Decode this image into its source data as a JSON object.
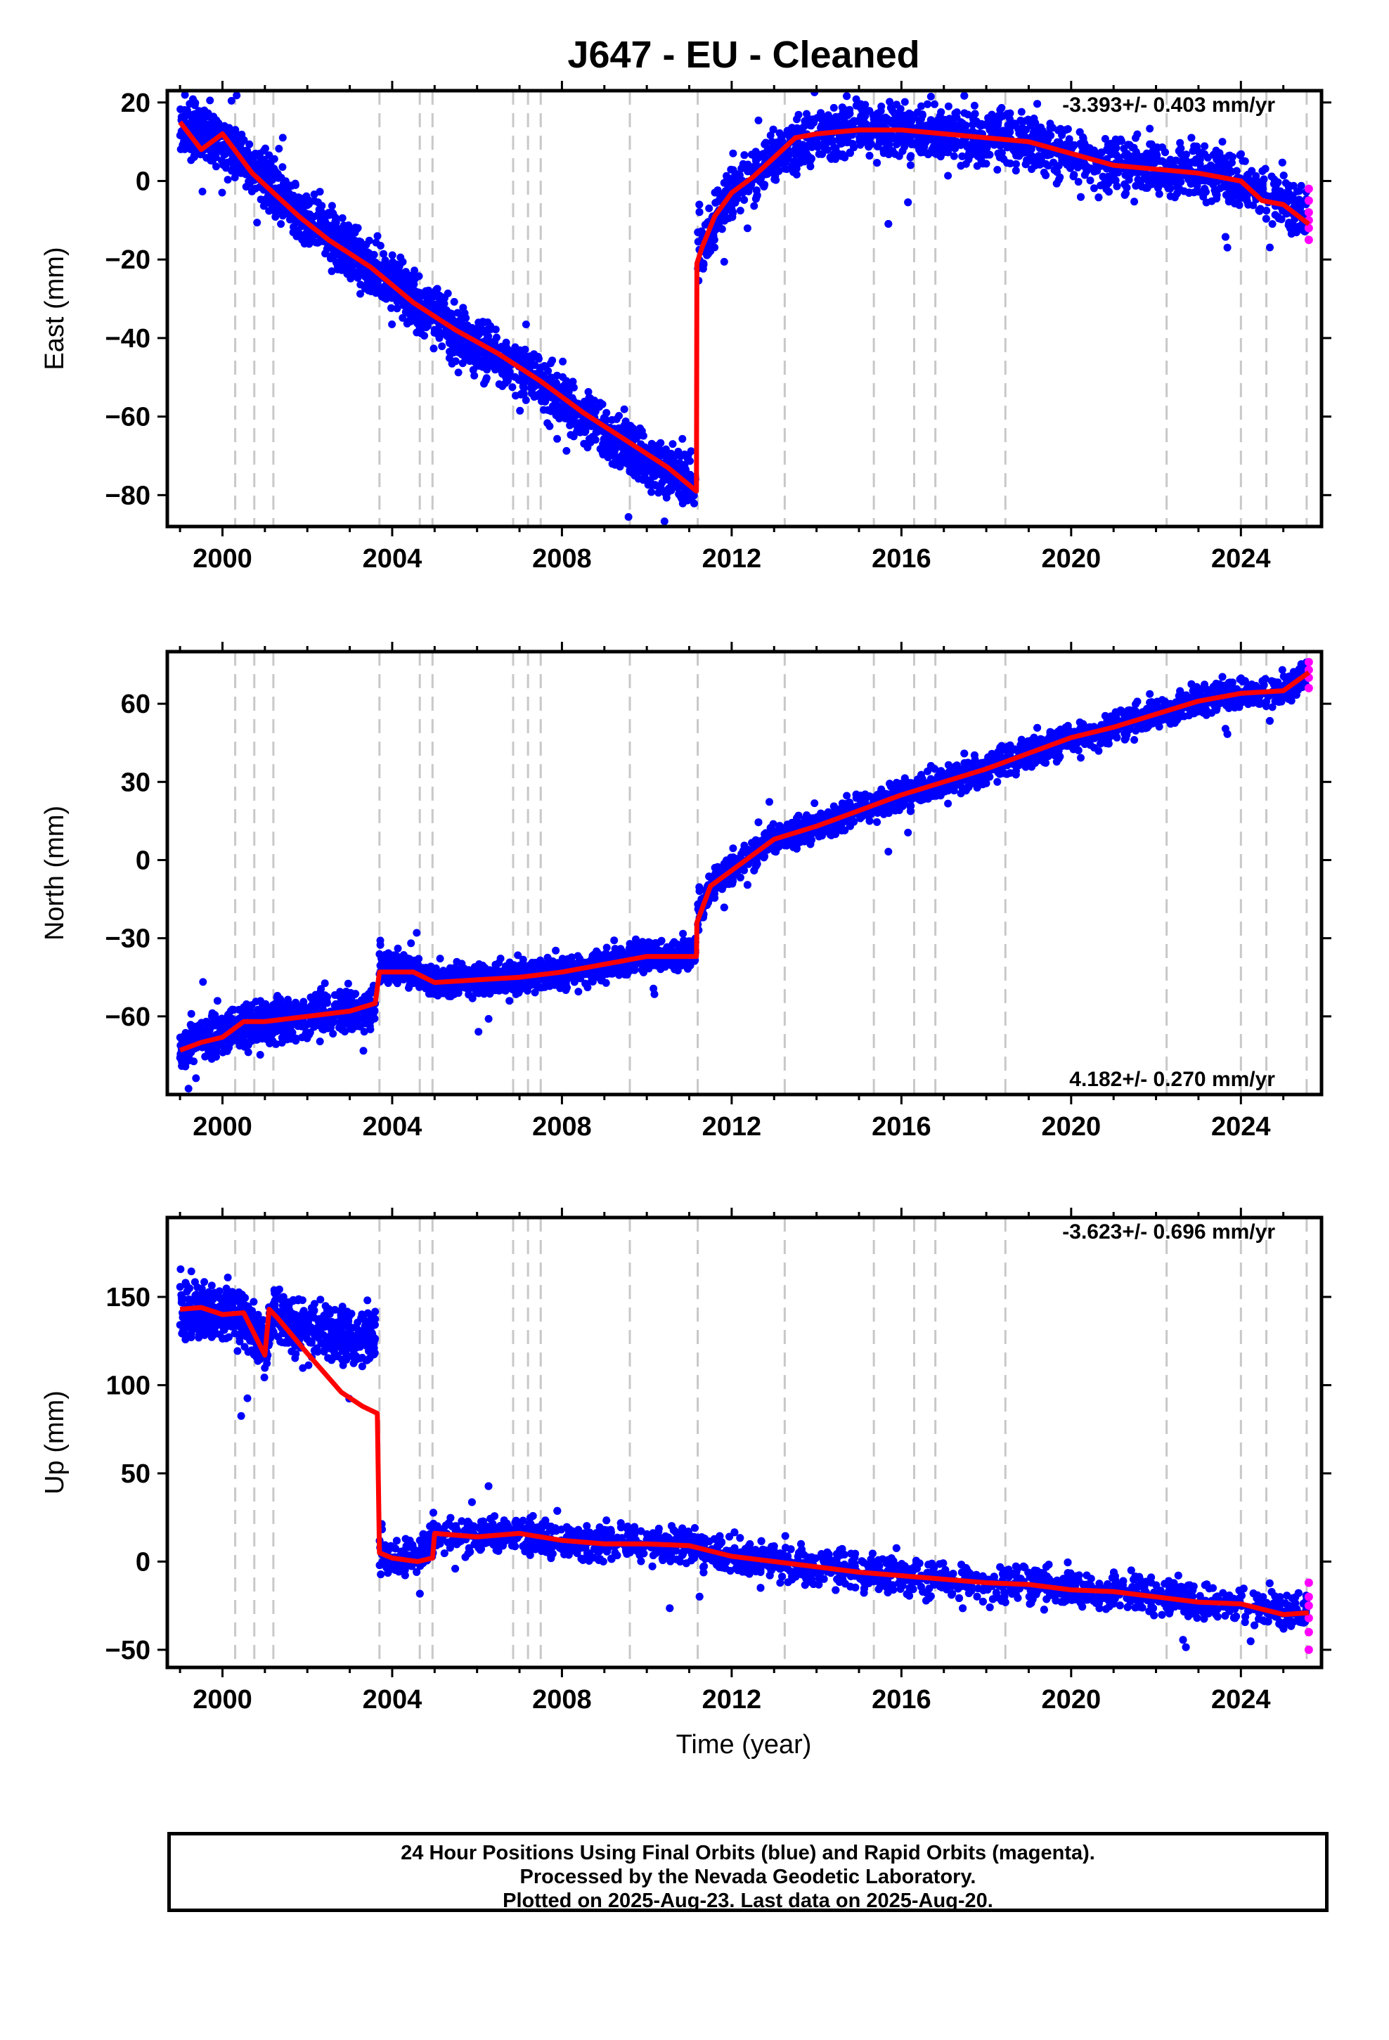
{
  "title": "J647  - EU - Cleaned",
  "xlabel": "Time (year)",
  "colors": {
    "final": "#0000ff",
    "rapid": "#ff00ff",
    "model": "#ff0000",
    "event": "#c8c8c8"
  },
  "caption": {
    "line1": "24 Hour Positions Using Final Orbits (blue) and Rapid Orbits (magenta).",
    "line2": "Processed by the Nevada Geodetic Laboratory.",
    "line3": "Plotted on 2025-Aug-23. Last data on 2025-Aug-20."
  },
  "chart_data": [
    {
      "type": "scatter",
      "component": "east",
      "ylabel": "East (mm)",
      "rate": "-3.393+/- 0.403 mm/yr",
      "rate_position": "top-right",
      "xlim": [
        1998.7,
        2025.9
      ],
      "ylim": [
        -88,
        23
      ],
      "xticks": [
        "2000",
        "2004",
        "2008",
        "2012",
        "2016",
        "2020",
        "2024"
      ],
      "yticks": [
        "20",
        "0",
        "−20",
        "−40",
        "−60",
        "−80"
      ],
      "ytick_values": [
        20,
        0,
        -20,
        -40,
        -60,
        -80
      ],
      "event_lines": [
        2000.3,
        2000.75,
        2001.2,
        2003.7,
        2004.65,
        2004.95,
        2006.85,
        2007.2,
        2007.5,
        2009.6,
        2011.2,
        2013.25,
        2015.35,
        2016.3,
        2016.8,
        2018.45,
        2022.25,
        2024.0,
        2024.6,
        2025.55
      ],
      "model": {
        "x": [
          1999.0,
          1999.5,
          2000.0,
          2000.7,
          2001.0,
          2001.8,
          2002.5,
          2003.5,
          2004.5,
          2005.5,
          2006.5,
          2007.5,
          2008.5,
          2009.5,
          2010.5,
          2011.17,
          2011.18,
          2011.3,
          2011.6,
          2012.0,
          2012.5,
          2013.0,
          2013.5,
          2014.0,
          2015.0,
          2016.0,
          2017.0,
          2018.0,
          2019.0,
          2020.0,
          2021.0,
          2022.0,
          2023.0,
          2024.0,
          2024.5,
          2025.0,
          2025.6
        ],
        "y": [
          15,
          8,
          12,
          2,
          -1,
          -9,
          -15,
          -22,
          -31,
          -38,
          -44,
          -51,
          -59,
          -66,
          -73,
          -79,
          -21,
          -17,
          -9,
          -3,
          1,
          6,
          11,
          12,
          13,
          13,
          12,
          11,
          10,
          7,
          4,
          3,
          2,
          0,
          -5,
          -6,
          -11
        ]
      },
      "bands": [
        {
          "x": [
            1999.0,
            2000.0,
            2001.0,
            2002.0,
            2003.0,
            2004.0,
            2005.0,
            2006.0,
            2007.0,
            2008.0,
            2009.0,
            2010.0,
            2011.15
          ],
          "center": [
            15,
            9,
            1,
            -10,
            -18,
            -26,
            -35,
            -42,
            -48,
            -56,
            -64,
            -71,
            -77
          ],
          "spread": 6
        },
        {
          "x": [
            2011.2,
            2011.6,
            2012.0,
            2012.5,
            2013.0,
            2014.0,
            2015.0,
            2016.0,
            2017.0,
            2018.0,
            2019.0,
            2020.0,
            2021.0,
            2022.0,
            2023.0,
            2024.0,
            2025.0,
            2025.55
          ],
          "center": [
            -19,
            -10,
            -3,
            1,
            6,
            12,
            13,
            13,
            12,
            11,
            10,
            7,
            4,
            3,
            2,
            0,
            -5,
            -10
          ],
          "spread": 6
        }
      ],
      "rapid": {
        "x": 2025.6,
        "y": [
          -15,
          -12,
          -10,
          -8,
          -5,
          -2
        ]
      }
    },
    {
      "type": "scatter",
      "component": "north",
      "ylabel": "North (mm)",
      "rate": "4.182+/- 0.270 mm/yr",
      "rate_position": "bottom-right",
      "xlim": [
        1998.7,
        2025.9
      ],
      "ylim": [
        -90,
        80
      ],
      "xticks": [
        "2000",
        "2004",
        "2008",
        "2012",
        "2016",
        "2020",
        "2024"
      ],
      "yticks": [
        "60",
        "30",
        "0",
        "−30",
        "−60"
      ],
      "ytick_values": [
        60,
        30,
        0,
        -30,
        -60
      ],
      "event_lines": [
        2000.3,
        2000.75,
        2001.2,
        2003.7,
        2004.65,
        2004.95,
        2006.85,
        2007.2,
        2007.5,
        2009.6,
        2011.2,
        2013.25,
        2015.35,
        2016.3,
        2016.8,
        2018.45,
        2022.25,
        2024.0,
        2024.6,
        2025.55
      ],
      "model": {
        "x": [
          1999.0,
          1999.5,
          2000.0,
          2000.5,
          2001.0,
          2002.0,
          2003.0,
          2003.6,
          2003.7,
          2004.5,
          2005.0,
          2006.0,
          2007.0,
          2008.0,
          2009.0,
          2010.0,
          2011.17,
          2011.18,
          2011.5,
          2012.0,
          2012.5,
          2013.0,
          2014.0,
          2015.0,
          2016.0,
          2017.0,
          2018.0,
          2019.0,
          2020.0,
          2021.0,
          2022.0,
          2023.0,
          2024.0,
          2025.0,
          2025.6
        ],
        "y": [
          -73,
          -70,
          -68,
          -62,
          -62,
          -60,
          -58,
          -55,
          -43,
          -43,
          -47,
          -46,
          -45,
          -43,
          -40,
          -37,
          -37,
          -24,
          -10,
          -4,
          2,
          8,
          13,
          19,
          25,
          30,
          35,
          41,
          47,
          51,
          56,
          61,
          64,
          65,
          72
        ]
      },
      "bands": [
        {
          "x": [
            1999.0,
            2000.0,
            2001.0,
            2002.0,
            2003.0,
            2003.6
          ],
          "center": [
            -72,
            -66,
            -62,
            -60,
            -58,
            -57
          ],
          "spread": 7
        },
        {
          "x": [
            2003.7,
            2004.5,
            2005.0,
            2006.0,
            2007.0,
            2008.0,
            2009.0,
            2010.0,
            2011.15
          ],
          "center": [
            -41,
            -43,
            -47,
            -46,
            -45,
            -43,
            -40,
            -37,
            -36
          ],
          "spread": 5
        },
        {
          "x": [
            2011.2,
            2011.5,
            2012.0,
            2012.5,
            2013.0,
            2014.0,
            2015.0,
            2016.0,
            2017.0,
            2018.0,
            2019.0,
            2020.0,
            2021.0,
            2022.0,
            2023.0,
            2024.0,
            2025.0,
            2025.55
          ],
          "center": [
            -22,
            -10,
            -4,
            2,
            8,
            13,
            19,
            25,
            30,
            35,
            41,
            47,
            51,
            56,
            61,
            64,
            65,
            70
          ],
          "spread": 5
        }
      ],
      "rapid": {
        "x": 2025.6,
        "y": [
          66,
          70,
          73,
          76
        ]
      }
    },
    {
      "type": "scatter",
      "component": "up",
      "ylabel": "Up (mm)",
      "rate": "-3.623+/- 0.696 mm/yr",
      "rate_position": "top-right",
      "xlim": [
        1998.7,
        2025.9
      ],
      "ylim": [
        -60,
        195
      ],
      "xticks": [
        "2000",
        "2004",
        "2008",
        "2012",
        "2016",
        "2020",
        "2024"
      ],
      "yticks": [
        "150",
        "100",
        "50",
        "0",
        "−50"
      ],
      "ytick_values": [
        150,
        100,
        50,
        0,
        -50
      ],
      "event_lines": [
        2000.3,
        2000.75,
        2001.2,
        2003.7,
        2004.65,
        2004.95,
        2006.85,
        2007.2,
        2007.5,
        2009.6,
        2011.2,
        2013.25,
        2015.35,
        2016.3,
        2016.8,
        2018.45,
        2022.25,
        2024.0,
        2024.6,
        2025.55
      ],
      "model": {
        "x": [
          1999.0,
          1999.5,
          2000.0,
          2000.5,
          2001.0,
          2001.1,
          2001.3,
          2002.0,
          2002.8,
          2003.3,
          2003.65,
          2003.7,
          2004.0,
          2004.6,
          2004.95,
          2005.0,
          2006.0,
          2007.0,
          2008.0,
          2009.0,
          2010.0,
          2011.0,
          2012.0,
          2013.0,
          2014.0,
          2015.0,
          2016.0,
          2017.0,
          2018.0,
          2019.0,
          2020.0,
          2021.0,
          2022.0,
          2023.0,
          2024.0,
          2025.0,
          2025.6
        ],
        "y": [
          143,
          144,
          140,
          141,
          117,
          143,
          138,
          118,
          96,
          88,
          84,
          5,
          2,
          0,
          2,
          16,
          14,
          16,
          12,
          10,
          10,
          9,
          3,
          0,
          -3,
          -6,
          -8,
          -10,
          -12,
          -13,
          -16,
          -17,
          -20,
          -23,
          -24,
          -30,
          -29
        ]
      },
      "bands": [
        {
          "x": [
            1999.0,
            2000.0,
            2000.5,
            2001.0,
            2001.2,
            2002.0,
            2002.8,
            2003.6
          ],
          "center": [
            142,
            141,
            138,
            122,
            140,
            133,
            128,
            125
          ],
          "spread": 14
        },
        {
          "x": [
            2003.7,
            2004.0,
            2004.6,
            2005.0,
            2006.0,
            2007.0,
            2008.0,
            2009.0,
            2010.0,
            2011.0,
            2012.0,
            2013.0,
            2014.0,
            2015.0,
            2016.0,
            2017.0,
            2018.0,
            2019.0,
            2020.0,
            2021.0,
            2022.0,
            2023.0,
            2024.0,
            2025.0,
            2025.55
          ],
          "center": [
            3,
            3,
            2,
            14,
            14,
            16,
            12,
            10,
            10,
            9,
            3,
            0,
            -3,
            -6,
            -8,
            -10,
            -12,
            -13,
            -16,
            -17,
            -20,
            -23,
            -24,
            -28,
            -30
          ],
          "spread": 9
        }
      ],
      "rapid": {
        "x": 2025.6,
        "y": [
          -50,
          -40,
          -32,
          -25,
          -20,
          -12
        ]
      }
    }
  ]
}
